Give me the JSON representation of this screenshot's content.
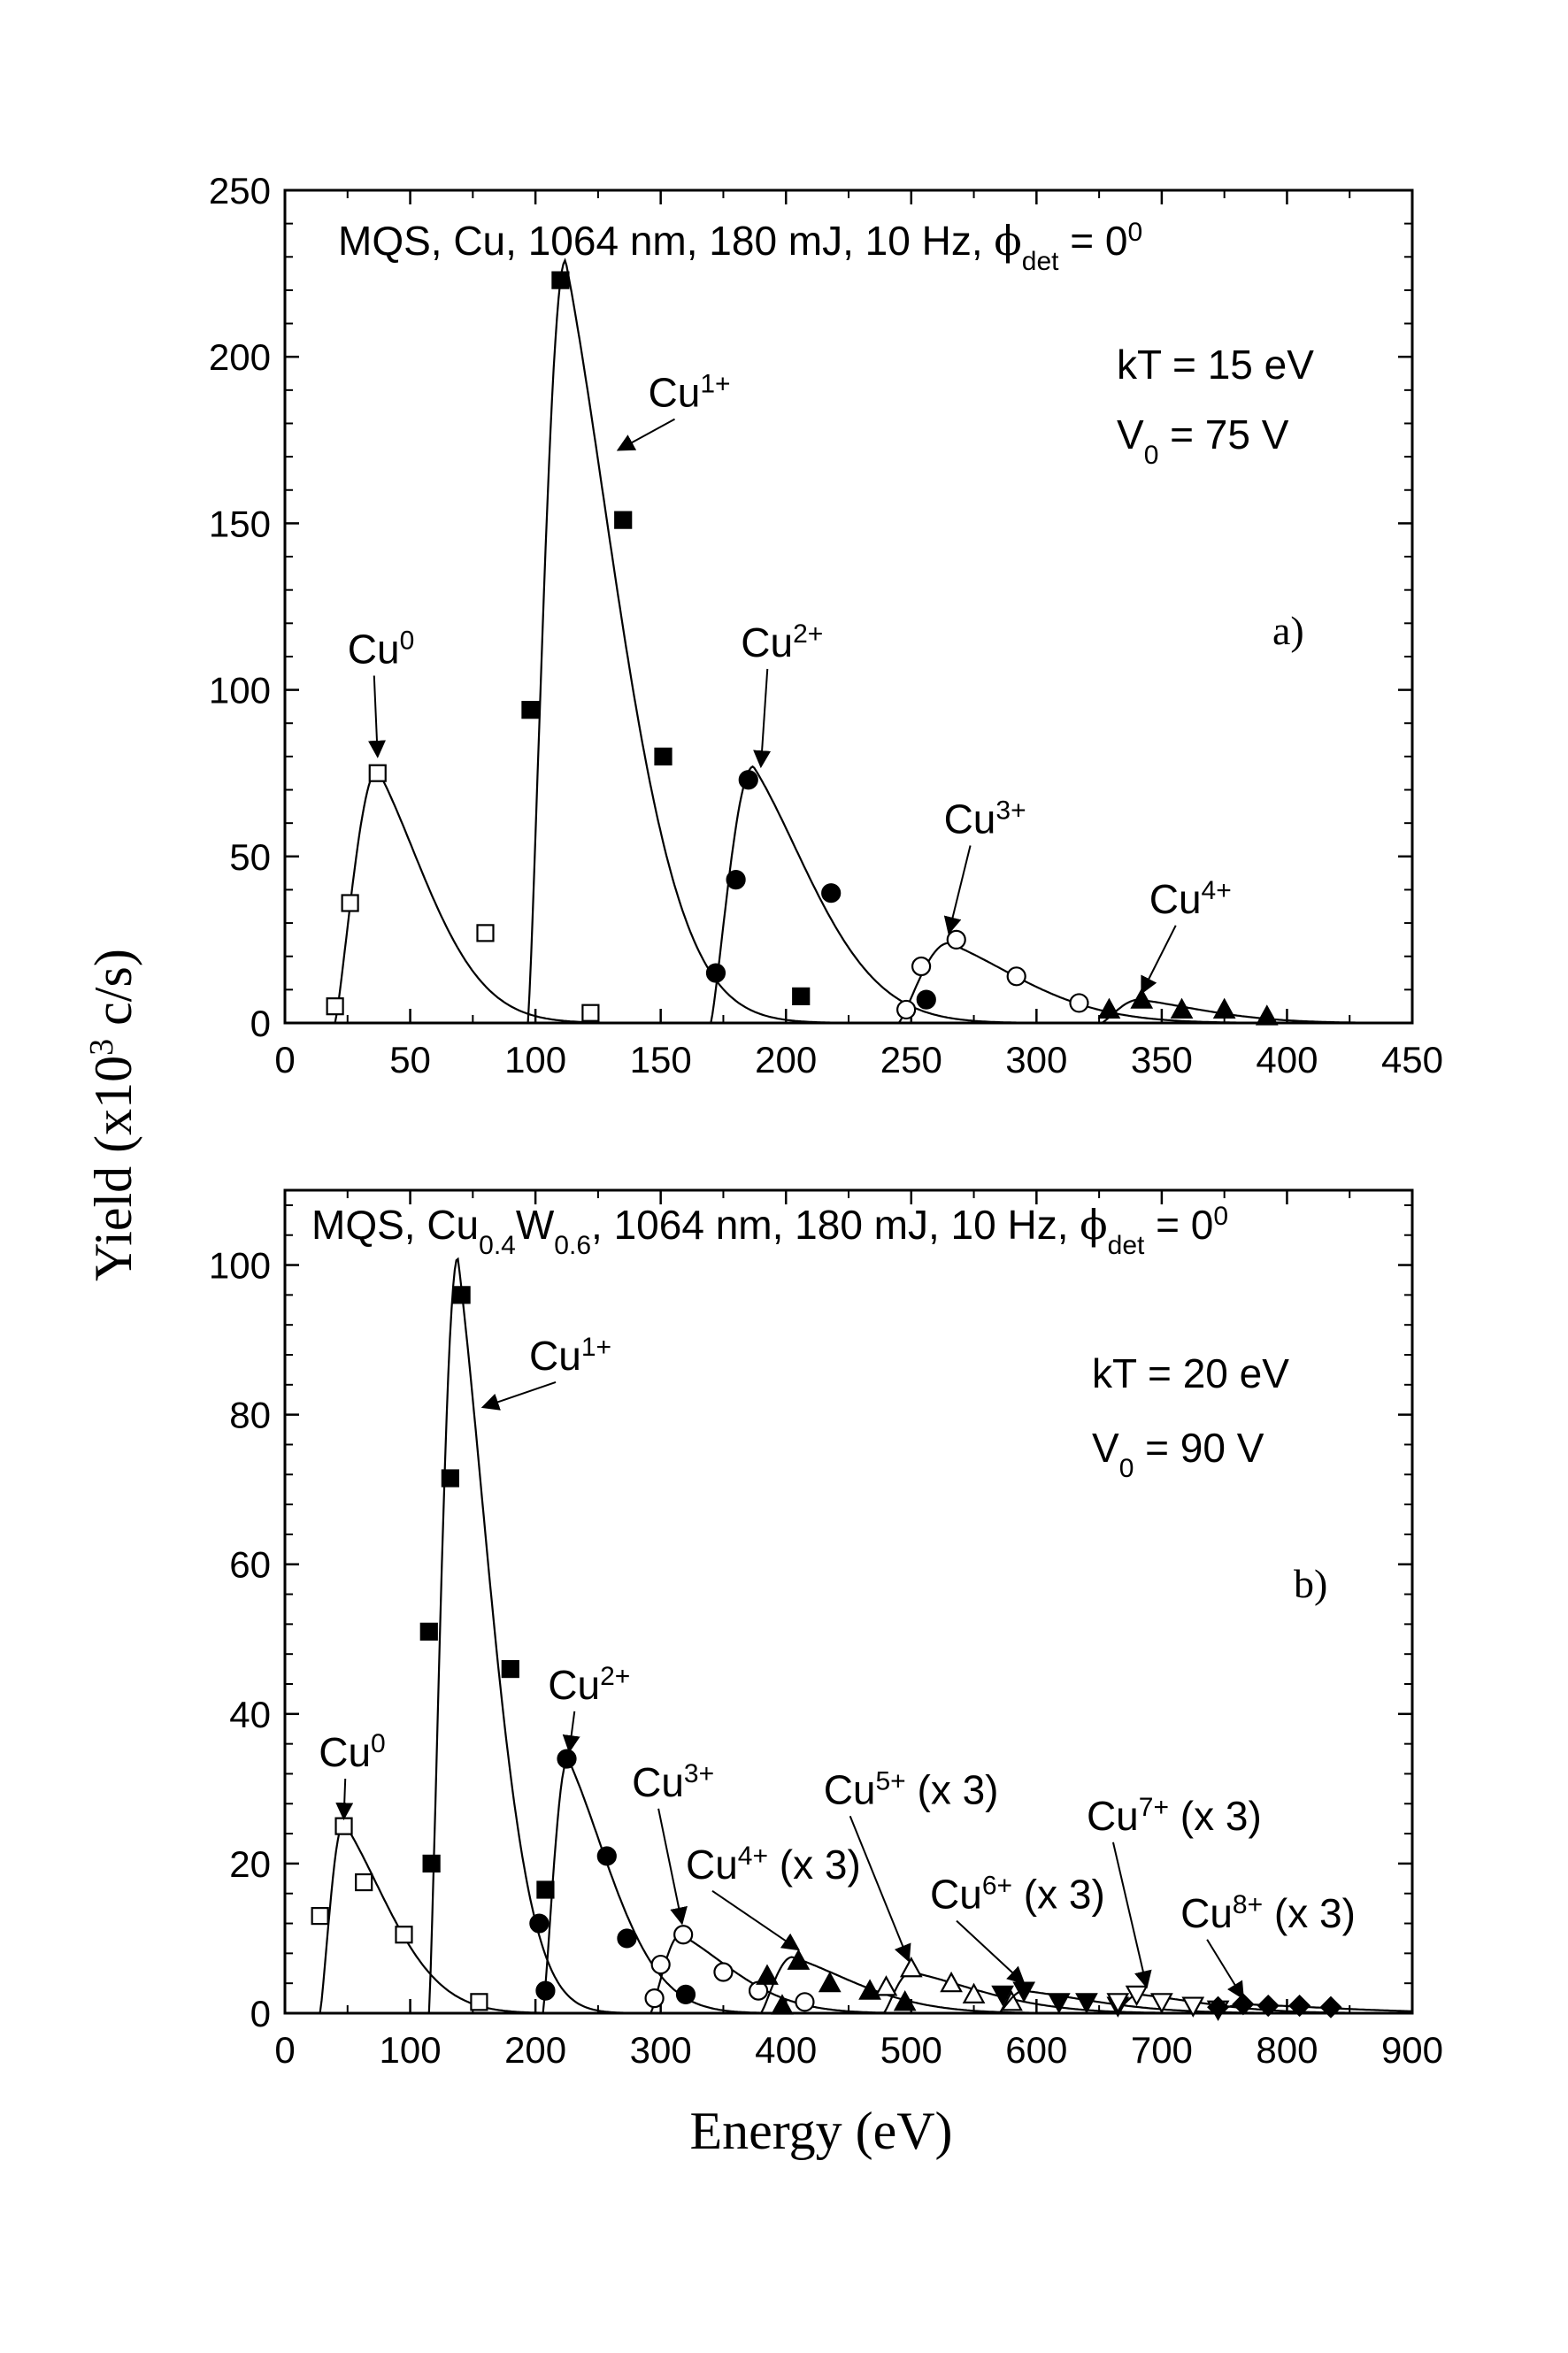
{
  "ylabel": "Yield (x10",
  "ylabel_exp": "3",
  "ylabel_tail": " c/s)",
  "xlabel": "Energy (eV)",
  "chart_data": [
    {
      "id": "a",
      "type": "scatter",
      "panel_label": "a)",
      "title_parts": [
        "MQS, Cu, 1064 nm, 180 mJ, 10 Hz, ",
        "ϕ",
        "det",
        " = 0",
        "0"
      ],
      "params": [
        {
          "base": "kT = 15 eV",
          "sub": "",
          "tail": ""
        },
        {
          "base": "V",
          "sub": "0",
          "tail": " = 75 V"
        }
      ],
      "xlim": [
        0,
        450
      ],
      "ylim": [
        0,
        250
      ],
      "xticks": [
        0,
        50,
        100,
        150,
        200,
        250,
        300,
        350,
        400,
        450
      ],
      "yticks": [
        0,
        50,
        100,
        150,
        200,
        250
      ],
      "series": [
        {
          "name": "Cu0",
          "label_base": "Cu",
          "label_sup": "0",
          "label_tail": "",
          "marker": "square-open",
          "x": [
            20,
            26,
            37,
            80,
            122
          ],
          "y": [
            5,
            36,
            75,
            27,
            3
          ],
          "fit": {
            "x0": 20,
            "peak_x": 37,
            "peak_y": 76,
            "decay": 22
          },
          "arrow_tip": [
            37,
            80
          ],
          "label_at": [
            25,
            108
          ]
        },
        {
          "name": "Cu1+",
          "label_base": "Cu",
          "label_sup": "1+",
          "label_tail": "",
          "marker": "square-filled",
          "x": [
            98,
            110,
            135,
            151,
            206
          ],
          "y": [
            94,
            223,
            151,
            80,
            8
          ],
          "fit": {
            "x0": 97,
            "peak_x": 112,
            "peak_y": 229,
            "decay": 24
          },
          "arrow_tip": [
            133,
            172
          ],
          "label_at": [
            145,
            185
          ]
        },
        {
          "name": "Cu2+",
          "label_base": "Cu",
          "label_sup": "2+",
          "label_tail": "",
          "marker": "circle-filled",
          "x": [
            172,
            180,
            185,
            218,
            256
          ],
          "y": [
            15,
            43,
            73,
            39,
            7
          ],
          "fit": {
            "x0": 170,
            "peak_x": 187,
            "peak_y": 77,
            "decay": 26
          },
          "arrow_tip": [
            190,
            77
          ],
          "label_at": [
            182,
            110
          ]
        },
        {
          "name": "Cu3+",
          "label_base": "Cu",
          "label_sup": "3+",
          "label_tail": "",
          "marker": "circle-open",
          "x": [
            248,
            254,
            268,
            292,
            317
          ],
          "y": [
            4,
            17,
            25,
            14,
            6
          ],
          "fit": {
            "x0": 245,
            "peak_x": 265,
            "peak_y": 24,
            "decay": 32
          },
          "arrow_tip": [
            265,
            27
          ],
          "label_at": [
            263,
            57
          ]
        },
        {
          "name": "Cu4+",
          "label_base": "Cu",
          "label_sup": "4+",
          "label_tail": "",
          "marker": "triangle-filled",
          "x": [
            329,
            342,
            358,
            375,
            392
          ],
          "y": [
            4,
            7,
            4,
            4,
            2
          ],
          "fit": {
            "x0": 326,
            "peak_x": 341,
            "peak_y": 7,
            "decay": 28
          },
          "arrow_tip": [
            342,
            9
          ],
          "label_at": [
            345,
            33
          ]
        }
      ]
    },
    {
      "id": "b",
      "type": "scatter",
      "panel_label": "b)",
      "title_parts": [
        "MQS, Cu",
        "0.4",
        "W",
        "0.6",
        ", 1064 nm, 180 mJ, 10 Hz, ",
        "ϕ",
        "det",
        " = 0",
        "0"
      ],
      "params": [
        {
          "base": "kT = 20 eV",
          "sub": "",
          "tail": ""
        },
        {
          "base": "V",
          "sub": "0",
          "tail": " = 90 V"
        }
      ],
      "xlim": [
        0,
        900
      ],
      "ylim": [
        0,
        110
      ],
      "xticks": [
        0,
        100,
        200,
        300,
        400,
        500,
        600,
        700,
        800,
        900
      ],
      "yticks": [
        0,
        20,
        40,
        60,
        80,
        100
      ],
      "series": [
        {
          "name": "Cu0",
          "label_base": "Cu",
          "label_sup": "0",
          "label_tail": "",
          "marker": "square-open",
          "x": [
            28,
            47,
            63,
            95,
            155
          ],
          "y": [
            13,
            25,
            17.5,
            10.5,
            1.5
          ],
          "fit": {
            "x0": 28,
            "peak_x": 47,
            "peak_y": 25.5,
            "decay": 40
          },
          "arrow_tip": [
            47,
            26
          ],
          "label_at": [
            27,
            33
          ]
        },
        {
          "name": "Cu1+",
          "label_base": "Cu",
          "label_sup": "1+",
          "label_tail": "",
          "marker": "square-filled",
          "x": [
            115,
            117,
            132,
            141,
            180,
            208
          ],
          "y": [
            51,
            20,
            71.5,
            96,
            46,
            16.5
          ],
          "fit": {
            "x0": 115,
            "peak_x": 138,
            "peak_y": 101,
            "decay": 30
          },
          "arrow_tip": [
            158,
            81
          ],
          "label_at": [
            195,
            86
          ]
        },
        {
          "name": "Cu2+",
          "label_base": "Cu",
          "label_sup": "2+",
          "label_tail": "",
          "marker": "circle-filled",
          "x": [
            203,
            208,
            225,
            257,
            273,
            320
          ],
          "y": [
            12,
            3,
            34,
            21,
            10,
            2.5
          ],
          "fit": {
            "x0": 206,
            "peak_x": 226,
            "peak_y": 34,
            "decay": 38
          },
          "arrow_tip": [
            227,
            35
          ],
          "label_at": [
            210,
            42
          ]
        },
        {
          "name": "Cu3+",
          "label_base": "Cu",
          "label_sup": "3+",
          "label_tail": "",
          "marker": "circle-open",
          "x": [
            295,
            300,
            318,
            350,
            378,
            415
          ],
          "y": [
            2,
            6.5,
            10.5,
            5.5,
            3,
            1.5
          ],
          "fit": {
            "x0": 292,
            "peak_x": 316,
            "peak_y": 10.5,
            "decay": 46
          },
          "arrow_tip": [
            317,
            12
          ],
          "label_at": [
            277,
            29
          ]
        },
        {
          "name": "Cu4+",
          "label_base": "Cu",
          "label_sup": "4+",
          "label_tail": " (x 3)",
          "marker": "triangle-filled",
          "x": [
            385,
            397,
            410,
            435,
            467,
            495
          ],
          "y": [
            5,
            1,
            7,
            4,
            3,
            1.5
          ],
          "fit": {
            "x0": 380,
            "peak_x": 405,
            "peak_y": 7.5,
            "decay": 55
          },
          "arrow_tip": [
            410,
            8.5
          ],
          "label_at": [
            320,
            18
          ]
        },
        {
          "name": "Cu5+",
          "label_base": "Cu",
          "label_sup": "5+",
          "label_tail": " (x 3)",
          "marker": "triangle-open",
          "x": [
            480,
            500,
            532,
            550,
            580
          ],
          "y": [
            3.5,
            6,
            4,
            2.5,
            1.5
          ],
          "fit": {
            "x0": 478,
            "peak_x": 500,
            "peak_y": 5.5,
            "decay": 60
          },
          "arrow_tip": [
            498,
            7
          ],
          "label_at": [
            430,
            28
          ]
        },
        {
          "name": "Cu6+",
          "label_base": "Cu",
          "label_sup": "6+",
          "label_tail": " (x 3)",
          "marker": "triangle-down-filled",
          "x": [
            573,
            590,
            618,
            640,
            665
          ],
          "y": [
            2.5,
            3,
            1.5,
            1.5,
            1
          ],
          "fit": {
            "x0": 570,
            "peak_x": 590,
            "peak_y": 3,
            "decay": 60
          },
          "arrow_tip": [
            590,
            4
          ],
          "label_at": [
            515,
            14
          ]
        },
        {
          "name": "Cu7+",
          "label_base": "Cu",
          "label_sup": "7+",
          "label_tail": " (x 3)",
          "marker": "triangle-down-open",
          "x": [
            665,
            680,
            700,
            725,
            745
          ],
          "y": [
            1.5,
            2.5,
            1.5,
            1,
            0.5
          ],
          "fit": {
            "x0": 663,
            "peak_x": 682,
            "peak_y": 2.5,
            "decay": 55
          },
          "arrow_tip": [
            688,
            3.5
          ],
          "label_at": [
            640,
            24.5
          ]
        },
        {
          "name": "Cu8+",
          "label_base": "Cu",
          "label_sup": "8+",
          "label_tail": " (x 3)",
          "marker": "diamond-filled",
          "x": [
            745,
            765,
            785,
            810,
            835
          ],
          "y": [
            0.8,
            1.2,
            1,
            1,
            0.8
          ],
          "fit": {
            "x0": 740,
            "peak_x": 765,
            "peak_y": 1.2,
            "decay": 80
          },
          "arrow_tip": [
            765,
            2
          ],
          "label_at": [
            715,
            11.5
          ]
        }
      ]
    }
  ]
}
